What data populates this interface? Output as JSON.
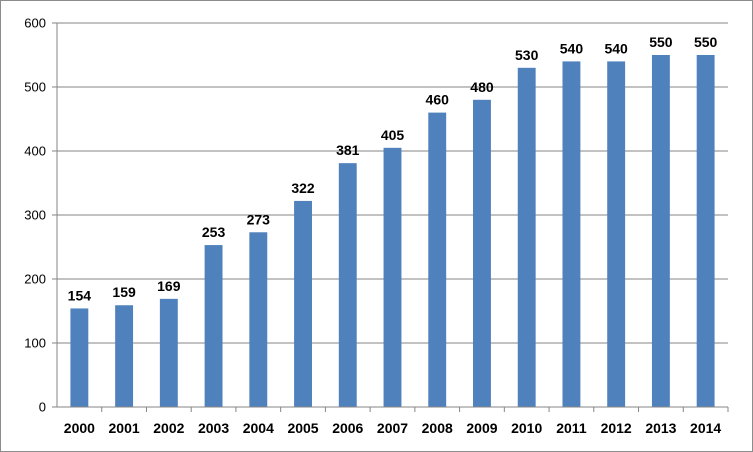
{
  "chart_data": {
    "type": "bar",
    "categories": [
      "2000",
      "2001",
      "2002",
      "2003",
      "2004",
      "2005",
      "2006",
      "2007",
      "2008",
      "2009",
      "2010",
      "2011",
      "2012",
      "2013",
      "2014"
    ],
    "values": [
      154,
      159,
      169,
      253,
      273,
      322,
      381,
      405,
      460,
      480,
      530,
      540,
      540,
      550,
      550
    ],
    "data_labels": [
      "154",
      "159",
      "169",
      "253",
      "273",
      "322",
      "381",
      "405",
      "460",
      "480",
      "530",
      "540",
      "540",
      "550",
      "550"
    ],
    "y_ticks": [
      "0",
      "100",
      "200",
      "300",
      "400",
      "500",
      "600"
    ],
    "title": "",
    "xlabel": "",
    "ylabel": "",
    "ylim": [
      0,
      600
    ],
    "grid": true,
    "legend": "none",
    "bar_color": "#4f81bd",
    "grid_color": "#868686"
  }
}
